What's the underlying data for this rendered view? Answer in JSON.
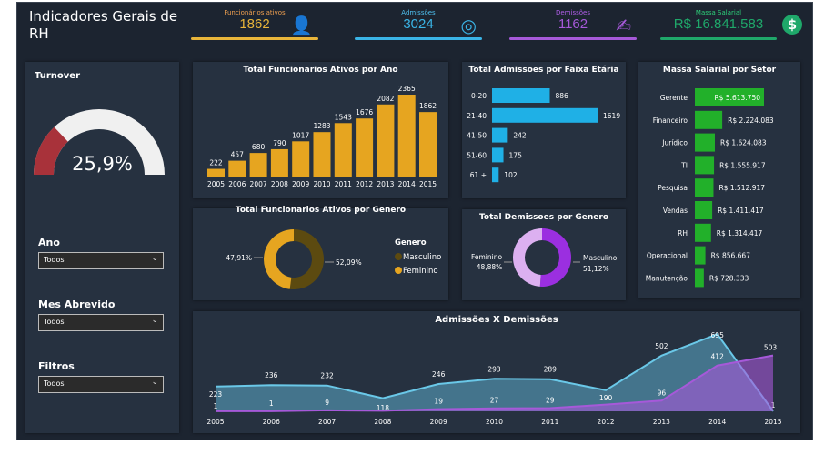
{
  "header": {
    "title": "Indicadores Gerais de RH"
  },
  "kpis": [
    {
      "label": "Funcionários ativos",
      "value": "1862",
      "color": "#e8b53a",
      "label_color": "#f0a050",
      "icon": "person-icon"
    },
    {
      "label": "Admissões",
      "value": "3024",
      "color": "#3ab4e6",
      "label_color": "#4fc0f0",
      "icon": "target-icon"
    },
    {
      "label": "Demissões",
      "value": "1162",
      "color": "#a659d9",
      "label_color": "#b05ee8",
      "icon": "signature-icon"
    },
    {
      "label": "Massa Salarial",
      "value": "R$ 16.841.583",
      "color": "#1fa86a",
      "label_color": "#2ed07a",
      "icon": "money-icon"
    }
  ],
  "turnover": {
    "title": "Turnover",
    "value_label": "25,9%",
    "value": 25.9,
    "fill_color": "#a8323a"
  },
  "slicers": [
    {
      "label": "Ano",
      "value": "Todos"
    },
    {
      "label": "Mes Abrevido",
      "value": "Todos"
    },
    {
      "label": "Filtros",
      "value": "Todos"
    }
  ],
  "chart_data": [
    {
      "type": "bar",
      "title": "Total Funcionarios Ativos por Ano",
      "categories": [
        "2005",
        "2006",
        "2007",
        "2008",
        "2009",
        "2010",
        "2011",
        "2012",
        "2013",
        "2014",
        "2015"
      ],
      "values": [
        222,
        457,
        680,
        790,
        1017,
        1283,
        1543,
        1676,
        2082,
        2365,
        1862
      ],
      "color": "#e6a520"
    },
    {
      "type": "pie",
      "title": "Total Funcionarios Ativos por Genero",
      "legend_title": "Genero",
      "slices": [
        {
          "name": "Masculino",
          "value": 52.09,
          "label": "52,09%",
          "color": "#5c4a10"
        },
        {
          "name": "Feminino",
          "value": 47.91,
          "label": "47,91%",
          "color": "#e6a520"
        }
      ]
    },
    {
      "type": "bar",
      "orientation": "horizontal",
      "title": "Total Admissoes por Faixa Etária",
      "categories": [
        "0-20",
        "21-40",
        "41-50",
        "51-60",
        "61 +"
      ],
      "values": [
        886,
        1619,
        242,
        175,
        102
      ],
      "color": "#1fb0e6"
    },
    {
      "type": "pie",
      "title": "Total Demissoes por Genero",
      "slices": [
        {
          "name": "Masculino",
          "value": 51.12,
          "label": "51,12%",
          "color": "#9b2fe0"
        },
        {
          "name": "Feminino",
          "value": 48.88,
          "label": "48,88%",
          "color": "#dcb0f0"
        }
      ]
    },
    {
      "type": "bar",
      "orientation": "horizontal",
      "title": "Massa Salarial por Setor",
      "categories": [
        "Gerente",
        "Financeiro",
        "Jurídico",
        "TI",
        "Pesquisa",
        "Vendas",
        "RH",
        "Operacional",
        "Manutenção"
      ],
      "values": [
        5613750,
        2224083,
        1624083,
        1555917,
        1512917,
        1411417,
        1314417,
        856667,
        728333
      ],
      "labels": [
        "R$ 5.613.750",
        "R$ 2.224.083",
        "R$ 1.624.083",
        "R$ 1.555.917",
        "R$ 1.512.917",
        "R$ 1.411.417",
        "R$ 1.314.417",
        "R$ 856.667",
        "R$ 728.333"
      ],
      "color": "#22b02a"
    },
    {
      "type": "area",
      "title": "Admissões X Demissões",
      "x": [
        "2005",
        "2006",
        "2007",
        "2008",
        "2009",
        "2010",
        "2011",
        "2012",
        "2013",
        "2014",
        "2015"
      ],
      "series": [
        {
          "values": [
            223,
            236,
            232,
            118,
            246,
            293,
            289,
            190,
            502,
            695,
            1
          ],
          "color": "#6ac8e8",
          "labels": [
            true,
            true,
            true,
            true,
            true,
            true,
            true,
            true,
            true,
            true,
            true
          ]
        },
        {
          "values": [
            1,
            1,
            9,
            5,
            19,
            27,
            29,
            60,
            96,
            412,
            503
          ],
          "color": "#a659d9",
          "labels": [
            true,
            true,
            true,
            false,
            true,
            true,
            true,
            false,
            true,
            true,
            true
          ]
        }
      ]
    }
  ]
}
